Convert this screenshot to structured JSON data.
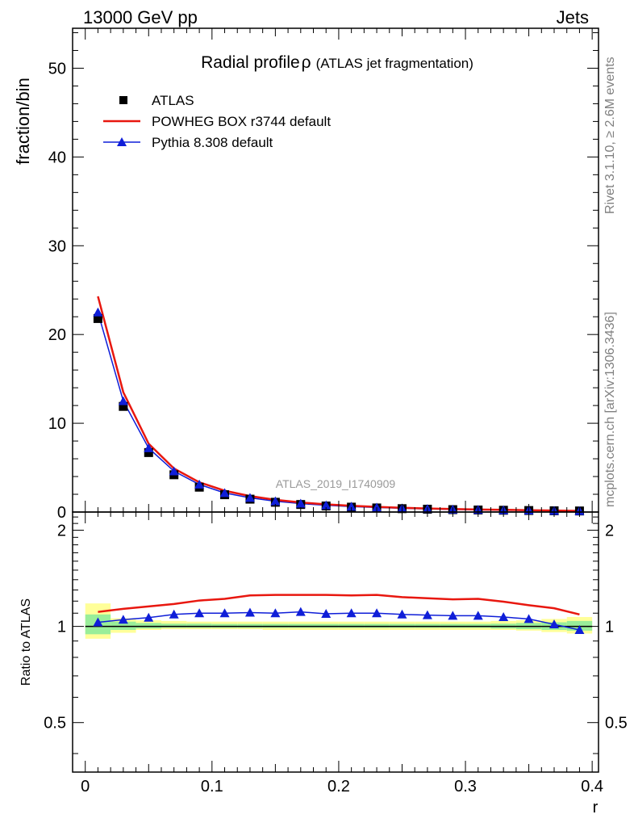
{
  "header": {
    "left_label": "13000 GeV pp",
    "right_label": "Jets"
  },
  "side_labels": {
    "rivet": "Rivet 3.1.10, ≥ 2.6M events",
    "mcplots": "mcplots.cern.ch [arXiv:1306.3436]"
  },
  "chart_data": [
    {
      "type": "scatter",
      "title": "Radial profile ρ (ATLAS jet fragmentation)",
      "title_main": "Radial profile",
      "title_rho": "ρ",
      "title_sub": "(ATLAS jet fragmentation)",
      "ylabel": "fraction/bin",
      "watermark": "ATLAS_2019_I1740909",
      "xlim": [
        -0.01,
        0.405
      ],
      "ylim": [
        0,
        54.5
      ],
      "yticks": [
        0,
        10,
        20,
        30,
        40,
        50
      ],
      "grid": false,
      "legend_position": "top-left",
      "x": [
        0.01,
        0.03,
        0.05,
        0.07,
        0.09,
        0.11,
        0.13,
        0.15,
        0.17,
        0.19,
        0.21,
        0.23,
        0.25,
        0.27,
        0.29,
        0.31,
        0.33,
        0.35,
        0.37,
        0.39
      ],
      "series": [
        {
          "name": "ATLAS",
          "style": "marker-square",
          "color": "#000000",
          "values": [
            21.8,
            11.9,
            6.7,
            4.2,
            2.8,
            1.95,
            1.45,
            1.1,
            0.85,
            0.68,
            0.55,
            0.46,
            0.38,
            0.32,
            0.27,
            0.23,
            0.2,
            0.17,
            0.14,
            0.12
          ]
        },
        {
          "name": "POWHEG BOX r3744 default",
          "style": "line",
          "color": "#e8170f",
          "values": [
            24.3,
            13.5,
            7.7,
            4.9,
            3.35,
            2.4,
            1.8,
            1.38,
            1.08,
            0.86,
            0.7,
            0.58,
            0.48,
            0.4,
            0.34,
            0.29,
            0.25,
            0.21,
            0.17,
            0.13
          ]
        },
        {
          "name": "Pythia 8.308 default",
          "style": "line-triangle",
          "color": "#0f1ed8",
          "values": [
            22.5,
            12.5,
            7.2,
            4.6,
            3.1,
            2.15,
            1.6,
            1.22,
            0.95,
            0.76,
            0.61,
            0.51,
            0.42,
            0.35,
            0.29,
            0.25,
            0.21,
            0.18,
            0.14,
            0.115
          ]
        }
      ]
    },
    {
      "type": "line",
      "ylabel": "Ratio to ATLAS",
      "xlabel": "r",
      "xlim": [
        -0.01,
        0.405
      ],
      "ylim": [
        0.35,
        2.28
      ],
      "yticks": [
        0.5,
        1,
        2
      ],
      "xticks": [
        0,
        0.1,
        0.2,
        0.3,
        0.4
      ],
      "reference_line": 1,
      "x": [
        0.01,
        0.03,
        0.05,
        0.07,
        0.09,
        0.11,
        0.13,
        0.15,
        0.17,
        0.19,
        0.21,
        0.23,
        0.25,
        0.27,
        0.29,
        0.31,
        0.33,
        0.35,
        0.37,
        0.39
      ],
      "uncertainty_bands": {
        "edges": [
          0,
          0.02,
          0.04,
          0.06,
          0.08,
          0.1,
          0.12,
          0.14,
          0.16,
          0.18,
          0.2,
          0.22,
          0.24,
          0.26,
          0.28,
          0.3,
          0.32,
          0.34,
          0.36,
          0.38,
          0.4
        ],
        "outer_lo": [
          0.915,
          0.955,
          0.975,
          0.98,
          0.98,
          0.98,
          0.98,
          0.975,
          0.975,
          0.975,
          0.975,
          0.975,
          0.975,
          0.975,
          0.975,
          0.975,
          0.975,
          0.97,
          0.96,
          0.95
        ],
        "outer_hi": [
          1.18,
          1.06,
          1.045,
          1.04,
          1.035,
          1.035,
          1.035,
          1.035,
          1.035,
          1.035,
          1.035,
          1.035,
          1.035,
          1.035,
          1.035,
          1.035,
          1.04,
          1.045,
          1.055,
          1.07
        ],
        "inner_lo": [
          0.945,
          0.975,
          0.985,
          0.99,
          0.99,
          0.99,
          0.99,
          0.99,
          0.99,
          0.99,
          0.99,
          0.99,
          0.99,
          0.99,
          0.99,
          0.99,
          0.985,
          0.98,
          0.975,
          0.97
        ],
        "inner_hi": [
          1.09,
          1.035,
          1.025,
          1.02,
          1.02,
          1.018,
          1.018,
          1.018,
          1.018,
          1.018,
          1.018,
          1.018,
          1.018,
          1.018,
          1.018,
          1.018,
          1.02,
          1.025,
          1.03,
          1.04
        ],
        "outer_color": "#ffff99",
        "inner_color": "#99ee99"
      },
      "series": [
        {
          "name": "POWHEG BOX r3744 default",
          "color": "#e8170f",
          "values": [
            1.11,
            1.135,
            1.155,
            1.175,
            1.205,
            1.22,
            1.25,
            1.255,
            1.255,
            1.255,
            1.25,
            1.255,
            1.235,
            1.225,
            1.215,
            1.22,
            1.195,
            1.165,
            1.14,
            1.09
          ]
        },
        {
          "name": "Pythia 8.308 default",
          "color": "#0f1ed8",
          "values": [
            1.03,
            1.05,
            1.065,
            1.09,
            1.1,
            1.1,
            1.105,
            1.1,
            1.11,
            1.095,
            1.1,
            1.1,
            1.09,
            1.085,
            1.08,
            1.08,
            1.07,
            1.055,
            1.015,
            0.975
          ]
        }
      ]
    }
  ],
  "colors": {
    "axis": "#000000",
    "gray_text": "#808080",
    "watermark": "#999999"
  }
}
